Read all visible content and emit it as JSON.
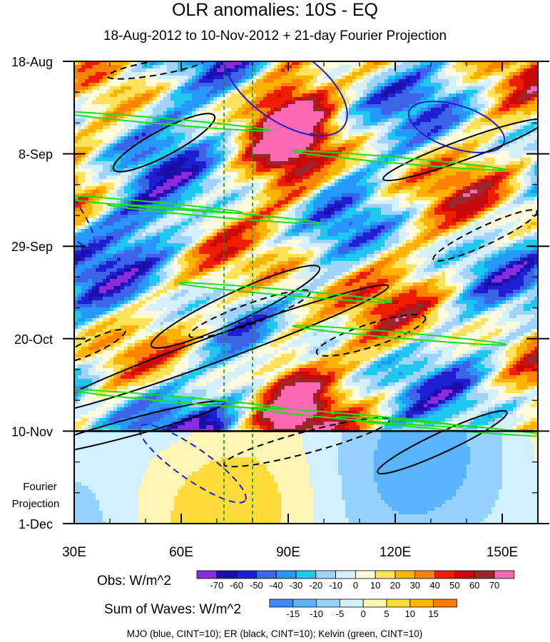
{
  "chart_data": {
    "type": "heatmap",
    "title": "OLR anomalies: 10S - EQ",
    "subtitle": "18-Aug-2012 to 10-Nov-2012 + 21-day Fourier Projection",
    "x_axis": {
      "range": [
        30,
        160
      ],
      "ticks": [
        30,
        60,
        90,
        120,
        150
      ],
      "tick_labels": [
        "30E",
        "60E",
        "90E",
        "120E",
        "150E"
      ]
    },
    "y_axis": {
      "range": [
        "2012-08-18",
        "2012-12-01"
      ],
      "ticks": [
        "2012-08-18",
        "2012-09-08",
        "2012-09-29",
        "2012-10-20",
        "2012-11-10",
        "2012-12-01"
      ],
      "tick_labels": [
        "18-Aug",
        "8-Sep",
        "29-Sep",
        "20-Oct",
        "10-Nov",
        "1-Dec"
      ],
      "reversed": true
    },
    "projection_label": [
      "Fourier",
      "Projection"
    ],
    "projection_start": "2012-11-10",
    "reference_lines_x": [
      72,
      80
    ],
    "obs_legend": {
      "label": "Obs: W/m^2",
      "levels": [
        -70,
        -60,
        -50,
        -40,
        -30,
        -20,
        -10,
        0,
        10,
        20,
        30,
        40,
        50,
        60,
        70
      ],
      "colors": [
        "#8a2be2",
        "#1a0fa8",
        "#1e1ed2",
        "#3c64e6",
        "#2896ff",
        "#1ec8f0",
        "#a0d2fa",
        "#d4f0fc",
        "#fffadc",
        "#ffe15a",
        "#ffb300",
        "#ff8200",
        "#f01e00",
        "#c80a0a",
        "#9b2828",
        "#ff69b4"
      ]
    },
    "waves_legend": {
      "label": "Sum of Waves: W/m^2",
      "levels": [
        -15,
        -10,
        -5,
        0,
        5,
        10,
        15
      ],
      "colors": [
        "#3c8cff",
        "#5ab4ff",
        "#96d2ff",
        "#d2f0ff",
        "#fff5b4",
        "#ffdc3c",
        "#ffb400",
        "#ff7d00"
      ]
    },
    "wave_contours": [
      {
        "name": "MJO",
        "color": "#1e1ed2",
        "cint": 10
      },
      {
        "name": "ER",
        "color": "#000000",
        "cint": 10
      },
      {
        "name": "Kelvin",
        "color": "#1edc1e",
        "cint": 10
      }
    ],
    "footnote": "MJO (blue, CINT=10); ER (black, CINT=10); Kelvin (green, CINT=10)"
  }
}
